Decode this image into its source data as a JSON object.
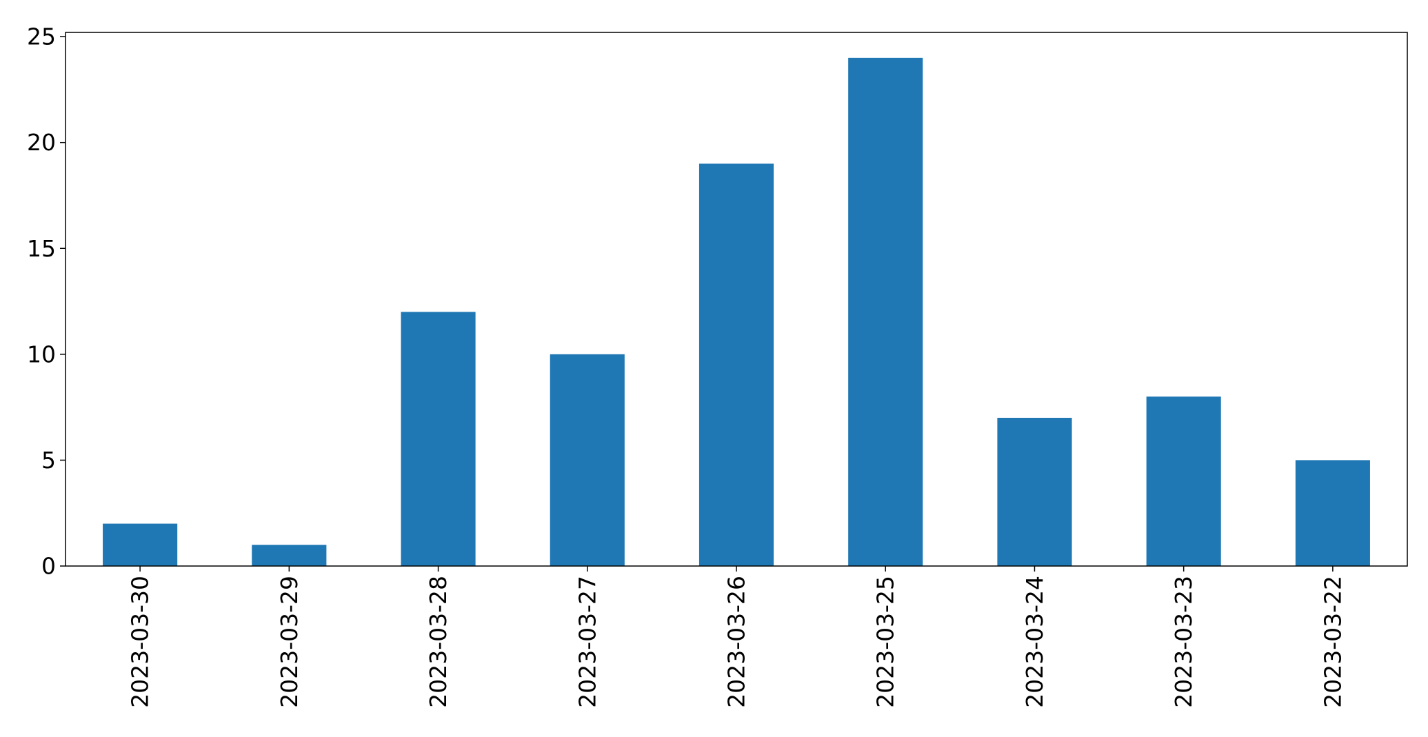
{
  "chart_data": {
    "type": "bar",
    "title": "",
    "xlabel": "",
    "ylabel": "",
    "categories": [
      "2023-03-30",
      "2023-03-29",
      "2023-03-28",
      "2023-03-27",
      "2023-03-26",
      "2023-03-25",
      "2023-03-24",
      "2023-03-23",
      "2023-03-22"
    ],
    "values": [
      2,
      1,
      12,
      10,
      19,
      24,
      7,
      8,
      5
    ],
    "ylim": [
      0,
      25.2
    ],
    "yticks": [
      0,
      5,
      10,
      15,
      20,
      25
    ],
    "ytick_labels": [
      "0",
      "5",
      "10",
      "15",
      "20",
      "25"
    ],
    "grid": false,
    "legend": "none",
    "bar_color": "#1f77b4"
  }
}
